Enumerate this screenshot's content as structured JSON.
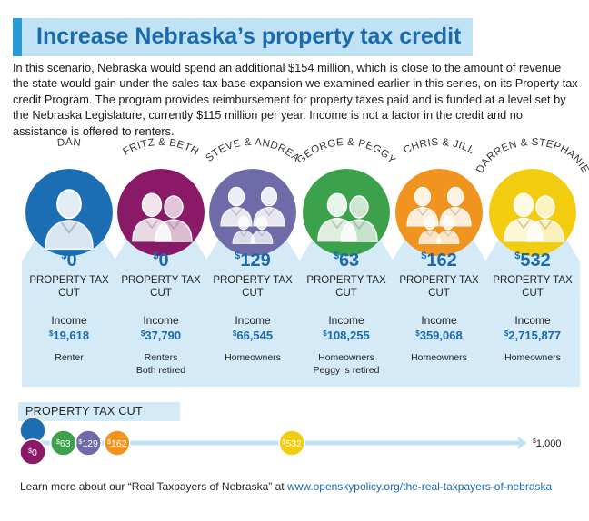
{
  "title": "Increase Nebraska’s property tax credit",
  "intro": "In this scenario, Nebraska would spend an additional $154 million, which is close to the amount of revenue the state would gain under the sales tax base expansion we examined earlier in this series, on its Property tax credit Program. The program provides reimbursement for property taxes paid and is funded at a level set by the Nebraska Legislature, currently $115 million per year. Income is not a factor in the credit and no assistance is offered to renters.",
  "families": [
    {
      "name": "DAN",
      "color": "#1b6db4",
      "cut": "0",
      "cut_value": 0,
      "cut_label": "PROPERTY TAX CUT",
      "income_label": "Income",
      "income": "19,618",
      "note1": "Renter",
      "note2": "",
      "members": 1
    },
    {
      "name": "FRITZ & BETH",
      "color": "#8a1a67",
      "cut": "0",
      "cut_value": 0,
      "cut_label": "PROPERTY TAX CUT",
      "income_label": "Income",
      "income": "37,790",
      "note1": "Renters",
      "note2": "Both retired",
      "members": 2
    },
    {
      "name": "STEVE & ANDREA",
      "color": "#6f6ba9",
      "cut": "129",
      "cut_value": 129,
      "cut_label": "PROPERTY TAX CUT",
      "income_label": "Income",
      "income": "66,545",
      "note1": "Homeowners",
      "note2": "",
      "members": 4
    },
    {
      "name": "GEORGE & PEGGY",
      "color": "#3ba14a",
      "cut": "63",
      "cut_value": 63,
      "cut_label": "PROPERTY TAX CUT",
      "income_label": "Income",
      "income": "108,255",
      "note1": "Homeowners",
      "note2": "Peggy is retired",
      "members": 2
    },
    {
      "name": "CHRIS & JILL",
      "color": "#f0931f",
      "cut": "162",
      "cut_value": 162,
      "cut_label": "PROPERTY TAX CUT",
      "income_label": "Income",
      "income": "359,068",
      "note1": "Homeowners",
      "note2": "",
      "members": 4
    },
    {
      "name": "DARREN & STEPHANIE",
      "color": "#f2cd0f",
      "cut": "532",
      "cut_value": 532,
      "cut_label": "PROPERTY TAX CUT",
      "income_label": "Income",
      "income": "2,715,877",
      "note1": "Homeowners",
      "note2": "",
      "members": 2
    }
  ],
  "scale": {
    "label": "PROPERTY TAX CUT",
    "max": 1000,
    "max_label": "1,000",
    "line_color": "#bfe3f4"
  },
  "footer": {
    "text": "Learn more about our “Real Taxpayers of Nebraska” at ",
    "link": "www.openskypolicy.org/the-real-taxpayers-of-nebraska"
  }
}
